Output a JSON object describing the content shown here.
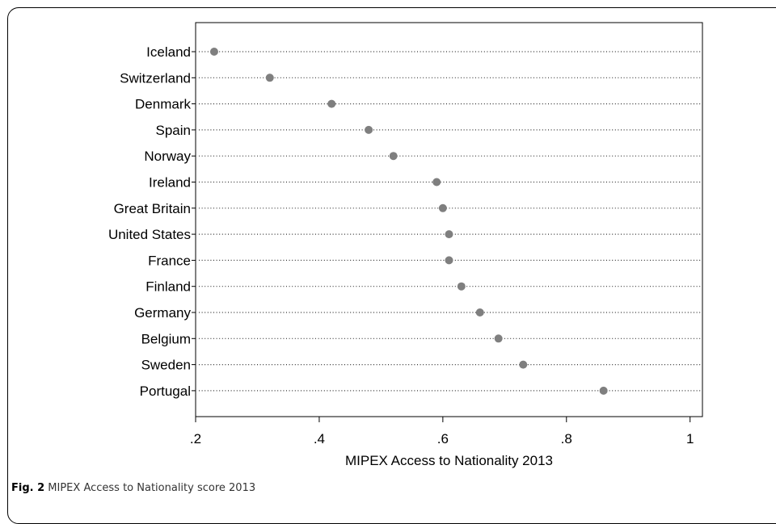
{
  "caption": {
    "label": "Fig. 2",
    "text": "MIPEX Access to Nationality score 2013"
  },
  "chart_data": {
    "type": "dot",
    "xlabel": "MIPEX Access to Nationality 2013",
    "xlim": [
      0.2,
      1.02
    ],
    "xticks": [
      0.2,
      0.4,
      0.6,
      0.8,
      1.0
    ],
    "xtick_labels": [
      ".2",
      ".4",
      ".6",
      ".8",
      "1"
    ],
    "grid": "dotted horizontal guide lines",
    "marker_color": "#7f7f7f",
    "categories": [
      "Iceland",
      "Switzerland",
      "Denmark",
      "Spain",
      "Norway",
      "Ireland",
      "Great Britain",
      "United States",
      "France",
      "Finland",
      "Germany",
      "Belgium",
      "Sweden",
      "Portugal"
    ],
    "values": [
      0.23,
      0.32,
      0.42,
      0.48,
      0.52,
      0.59,
      0.6,
      0.61,
      0.61,
      0.63,
      0.66,
      0.69,
      0.73,
      0.86
    ]
  }
}
